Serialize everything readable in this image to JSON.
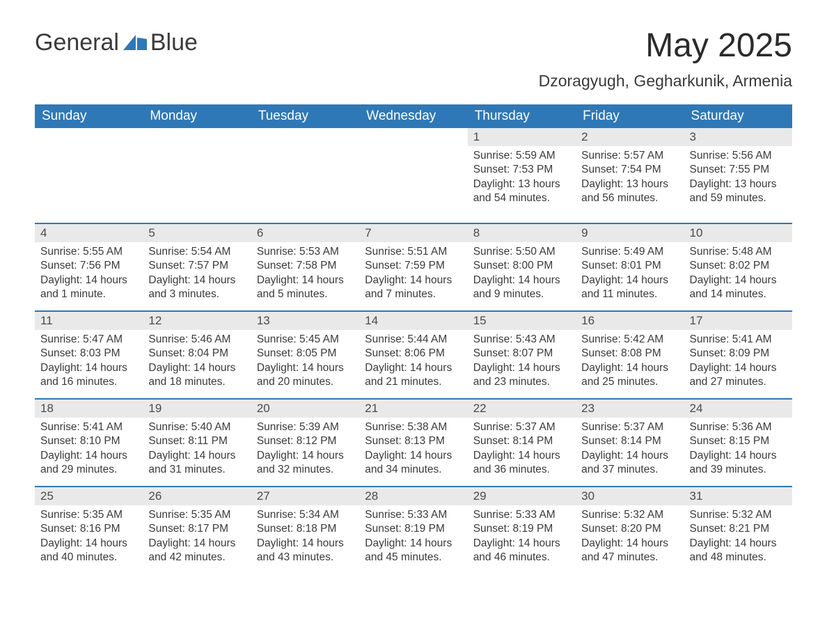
{
  "branding": {
    "logo_word1": "General",
    "logo_word2": "Blue",
    "logo_icon_color": "#2f78b7",
    "text_color": "#3a3a3a"
  },
  "header": {
    "month_title": "May 2025",
    "location": "Dzoragyugh, Gegharkunik, Armenia"
  },
  "theme": {
    "header_bg": "#2f78b7",
    "header_text": "#ffffff",
    "daynum_bg": "#e9e9e9",
    "cell_border": "#2f78b7",
    "body_text": "#3a3a3a",
    "background": "#ffffff",
    "th_fontsize": 19,
    "title_fontsize": 48,
    "location_fontsize": 23,
    "body_fontsize": 15.5
  },
  "days_of_week": [
    "Sunday",
    "Monday",
    "Tuesday",
    "Wednesday",
    "Thursday",
    "Friday",
    "Saturday"
  ],
  "weeks": [
    [
      null,
      null,
      null,
      null,
      {
        "n": "1",
        "sunrise": "Sunrise: 5:59 AM",
        "sunset": "Sunset: 7:53 PM",
        "daylight": "Daylight: 13 hours and 54 minutes."
      },
      {
        "n": "2",
        "sunrise": "Sunrise: 5:57 AM",
        "sunset": "Sunset: 7:54 PM",
        "daylight": "Daylight: 13 hours and 56 minutes."
      },
      {
        "n": "3",
        "sunrise": "Sunrise: 5:56 AM",
        "sunset": "Sunset: 7:55 PM",
        "daylight": "Daylight: 13 hours and 59 minutes."
      }
    ],
    [
      {
        "n": "4",
        "sunrise": "Sunrise: 5:55 AM",
        "sunset": "Sunset: 7:56 PM",
        "daylight": "Daylight: 14 hours and 1 minute."
      },
      {
        "n": "5",
        "sunrise": "Sunrise: 5:54 AM",
        "sunset": "Sunset: 7:57 PM",
        "daylight": "Daylight: 14 hours and 3 minutes."
      },
      {
        "n": "6",
        "sunrise": "Sunrise: 5:53 AM",
        "sunset": "Sunset: 7:58 PM",
        "daylight": "Daylight: 14 hours and 5 minutes."
      },
      {
        "n": "7",
        "sunrise": "Sunrise: 5:51 AM",
        "sunset": "Sunset: 7:59 PM",
        "daylight": "Daylight: 14 hours and 7 minutes."
      },
      {
        "n": "8",
        "sunrise": "Sunrise: 5:50 AM",
        "sunset": "Sunset: 8:00 PM",
        "daylight": "Daylight: 14 hours and 9 minutes."
      },
      {
        "n": "9",
        "sunrise": "Sunrise: 5:49 AM",
        "sunset": "Sunset: 8:01 PM",
        "daylight": "Daylight: 14 hours and 11 minutes."
      },
      {
        "n": "10",
        "sunrise": "Sunrise: 5:48 AM",
        "sunset": "Sunset: 8:02 PM",
        "daylight": "Daylight: 14 hours and 14 minutes."
      }
    ],
    [
      {
        "n": "11",
        "sunrise": "Sunrise: 5:47 AM",
        "sunset": "Sunset: 8:03 PM",
        "daylight": "Daylight: 14 hours and 16 minutes."
      },
      {
        "n": "12",
        "sunrise": "Sunrise: 5:46 AM",
        "sunset": "Sunset: 8:04 PM",
        "daylight": "Daylight: 14 hours and 18 minutes."
      },
      {
        "n": "13",
        "sunrise": "Sunrise: 5:45 AM",
        "sunset": "Sunset: 8:05 PM",
        "daylight": "Daylight: 14 hours and 20 minutes."
      },
      {
        "n": "14",
        "sunrise": "Sunrise: 5:44 AM",
        "sunset": "Sunset: 8:06 PM",
        "daylight": "Daylight: 14 hours and 21 minutes."
      },
      {
        "n": "15",
        "sunrise": "Sunrise: 5:43 AM",
        "sunset": "Sunset: 8:07 PM",
        "daylight": "Daylight: 14 hours and 23 minutes."
      },
      {
        "n": "16",
        "sunrise": "Sunrise: 5:42 AM",
        "sunset": "Sunset: 8:08 PM",
        "daylight": "Daylight: 14 hours and 25 minutes."
      },
      {
        "n": "17",
        "sunrise": "Sunrise: 5:41 AM",
        "sunset": "Sunset: 8:09 PM",
        "daylight": "Daylight: 14 hours and 27 minutes."
      }
    ],
    [
      {
        "n": "18",
        "sunrise": "Sunrise: 5:41 AM",
        "sunset": "Sunset: 8:10 PM",
        "daylight": "Daylight: 14 hours and 29 minutes."
      },
      {
        "n": "19",
        "sunrise": "Sunrise: 5:40 AM",
        "sunset": "Sunset: 8:11 PM",
        "daylight": "Daylight: 14 hours and 31 minutes."
      },
      {
        "n": "20",
        "sunrise": "Sunrise: 5:39 AM",
        "sunset": "Sunset: 8:12 PM",
        "daylight": "Daylight: 14 hours and 32 minutes."
      },
      {
        "n": "21",
        "sunrise": "Sunrise: 5:38 AM",
        "sunset": "Sunset: 8:13 PM",
        "daylight": "Daylight: 14 hours and 34 minutes."
      },
      {
        "n": "22",
        "sunrise": "Sunrise: 5:37 AM",
        "sunset": "Sunset: 8:14 PM",
        "daylight": "Daylight: 14 hours and 36 minutes."
      },
      {
        "n": "23",
        "sunrise": "Sunrise: 5:37 AM",
        "sunset": "Sunset: 8:14 PM",
        "daylight": "Daylight: 14 hours and 37 minutes."
      },
      {
        "n": "24",
        "sunrise": "Sunrise: 5:36 AM",
        "sunset": "Sunset: 8:15 PM",
        "daylight": "Daylight: 14 hours and 39 minutes."
      }
    ],
    [
      {
        "n": "25",
        "sunrise": "Sunrise: 5:35 AM",
        "sunset": "Sunset: 8:16 PM",
        "daylight": "Daylight: 14 hours and 40 minutes."
      },
      {
        "n": "26",
        "sunrise": "Sunrise: 5:35 AM",
        "sunset": "Sunset: 8:17 PM",
        "daylight": "Daylight: 14 hours and 42 minutes."
      },
      {
        "n": "27",
        "sunrise": "Sunrise: 5:34 AM",
        "sunset": "Sunset: 8:18 PM",
        "daylight": "Daylight: 14 hours and 43 minutes."
      },
      {
        "n": "28",
        "sunrise": "Sunrise: 5:33 AM",
        "sunset": "Sunset: 8:19 PM",
        "daylight": "Daylight: 14 hours and 45 minutes."
      },
      {
        "n": "29",
        "sunrise": "Sunrise: 5:33 AM",
        "sunset": "Sunset: 8:19 PM",
        "daylight": "Daylight: 14 hours and 46 minutes."
      },
      {
        "n": "30",
        "sunrise": "Sunrise: 5:32 AM",
        "sunset": "Sunset: 8:20 PM",
        "daylight": "Daylight: 14 hours and 47 minutes."
      },
      {
        "n": "31",
        "sunrise": "Sunrise: 5:32 AM",
        "sunset": "Sunset: 8:21 PM",
        "daylight": "Daylight: 14 hours and 48 minutes."
      }
    ]
  ]
}
